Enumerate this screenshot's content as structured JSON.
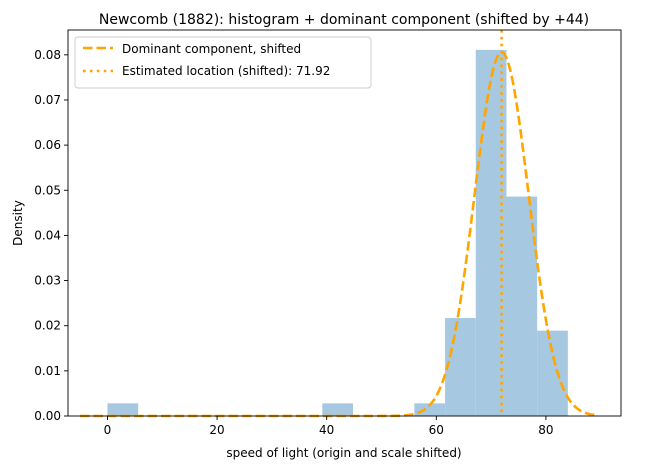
{
  "chart_data": {
    "type": "bar",
    "title": "Newcomb (1882): histogram + dominant component (shifted by +44)",
    "xlabel": "speed of light (origin and scale shifted)",
    "ylabel": "Density",
    "xlim": [
      -7.2,
      93.7
    ],
    "ylim": [
      0,
      0.0855
    ],
    "xticks": [
      0,
      20,
      40,
      60,
      80
    ],
    "xtick_labels": [
      "0",
      "20",
      "40",
      "60",
      "80"
    ],
    "yticks": [
      0.0,
      0.01,
      0.02,
      0.03,
      0.04,
      0.05,
      0.06,
      0.07,
      0.08
    ],
    "ytick_labels": [
      "0.00",
      "0.01",
      "0.02",
      "0.03",
      "0.04",
      "0.05",
      "0.06",
      "0.07",
      "0.08"
    ],
    "grid": false,
    "legend_position": "top-left",
    "histogram": {
      "bin_edges": [
        0,
        5.6,
        11.2,
        16.8,
        22.4,
        28.0,
        33.6,
        39.2,
        44.8,
        50.4,
        56.0,
        61.6,
        67.2,
        72.8,
        78.4,
        84.0
      ],
      "densities": [
        0.0028,
        0,
        0,
        0,
        0,
        0,
        0,
        0.0028,
        0,
        0,
        0.0028,
        0.0217,
        0.0811,
        0.0486,
        0.0189
      ],
      "color": "#a6c8e0"
    },
    "series": [
      {
        "name": "Dominant component, shifted",
        "style": "dashed",
        "color": "#ffa500",
        "curve": "normal",
        "mean": 71.92,
        "sd": 4.95,
        "x_range": [
          -5,
          89
        ]
      },
      {
        "name": "Estimated location (shifted): 71.92",
        "style": "dotted",
        "color": "#ffa500",
        "vline_x": 71.92
      }
    ]
  }
}
